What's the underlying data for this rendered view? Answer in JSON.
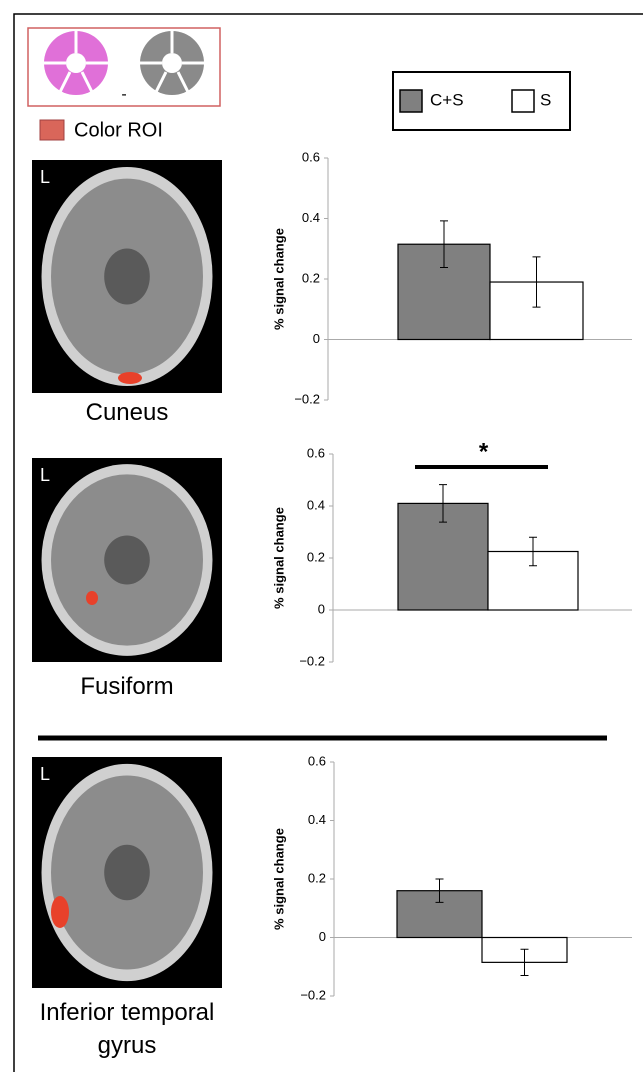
{
  "stimulus_operator": "-",
  "roi_legend": "Color ROI",
  "chart_data": [
    {
      "type": "bar",
      "region": "Cuneus",
      "orientation_label": "L",
      "ylabel": "% signal change",
      "ylim": [
        -0.2,
        0.6
      ],
      "yticks": [
        0.6,
        0.4,
        0.2,
        0,
        {
          "value": -0.2,
          "label": "−0.2"
        }
      ],
      "series": [
        {
          "name": "C+S",
          "color": "#808080",
          "values": [
            0.315
          ],
          "errors": [
            0.077
          ]
        },
        {
          "name": "S",
          "color": "#ffffff",
          "values": [
            0.19
          ],
          "errors": [
            0.083
          ]
        }
      ]
    },
    {
      "type": "bar",
      "region": "Fusiform",
      "orientation_label": "L",
      "ylabel": "% signal change",
      "annotation": "*",
      "ylim": [
        -0.2,
        0.6
      ],
      "yticks": [
        0.6,
        0.4,
        0.2,
        0,
        {
          "value": -0.2,
          "label": "−0.2"
        }
      ],
      "series": [
        {
          "name": "C+S",
          "color": "#808080",
          "values": [
            0.41
          ],
          "errors": [
            0.072
          ]
        },
        {
          "name": "S",
          "color": "#ffffff",
          "values": [
            0.225
          ],
          "errors": [
            0.055
          ]
        }
      ]
    },
    {
      "type": "bar",
      "region": "Inferior temporal gyrus",
      "orientation_label": "L",
      "ylabel": "% signal change",
      "ylim": [
        -0.2,
        0.6
      ],
      "yticks": [
        0.6,
        0.4,
        0.2,
        0,
        {
          "value": -0.2,
          "label": "−0.2"
        }
      ],
      "series": [
        {
          "name": "C+S",
          "color": "#808080",
          "values": [
            0.16
          ],
          "errors": [
            0.04
          ]
        },
        {
          "name": "S",
          "color": "#ffffff",
          "values": [
            -0.085
          ],
          "errors": [
            0.045
          ]
        }
      ]
    }
  ]
}
